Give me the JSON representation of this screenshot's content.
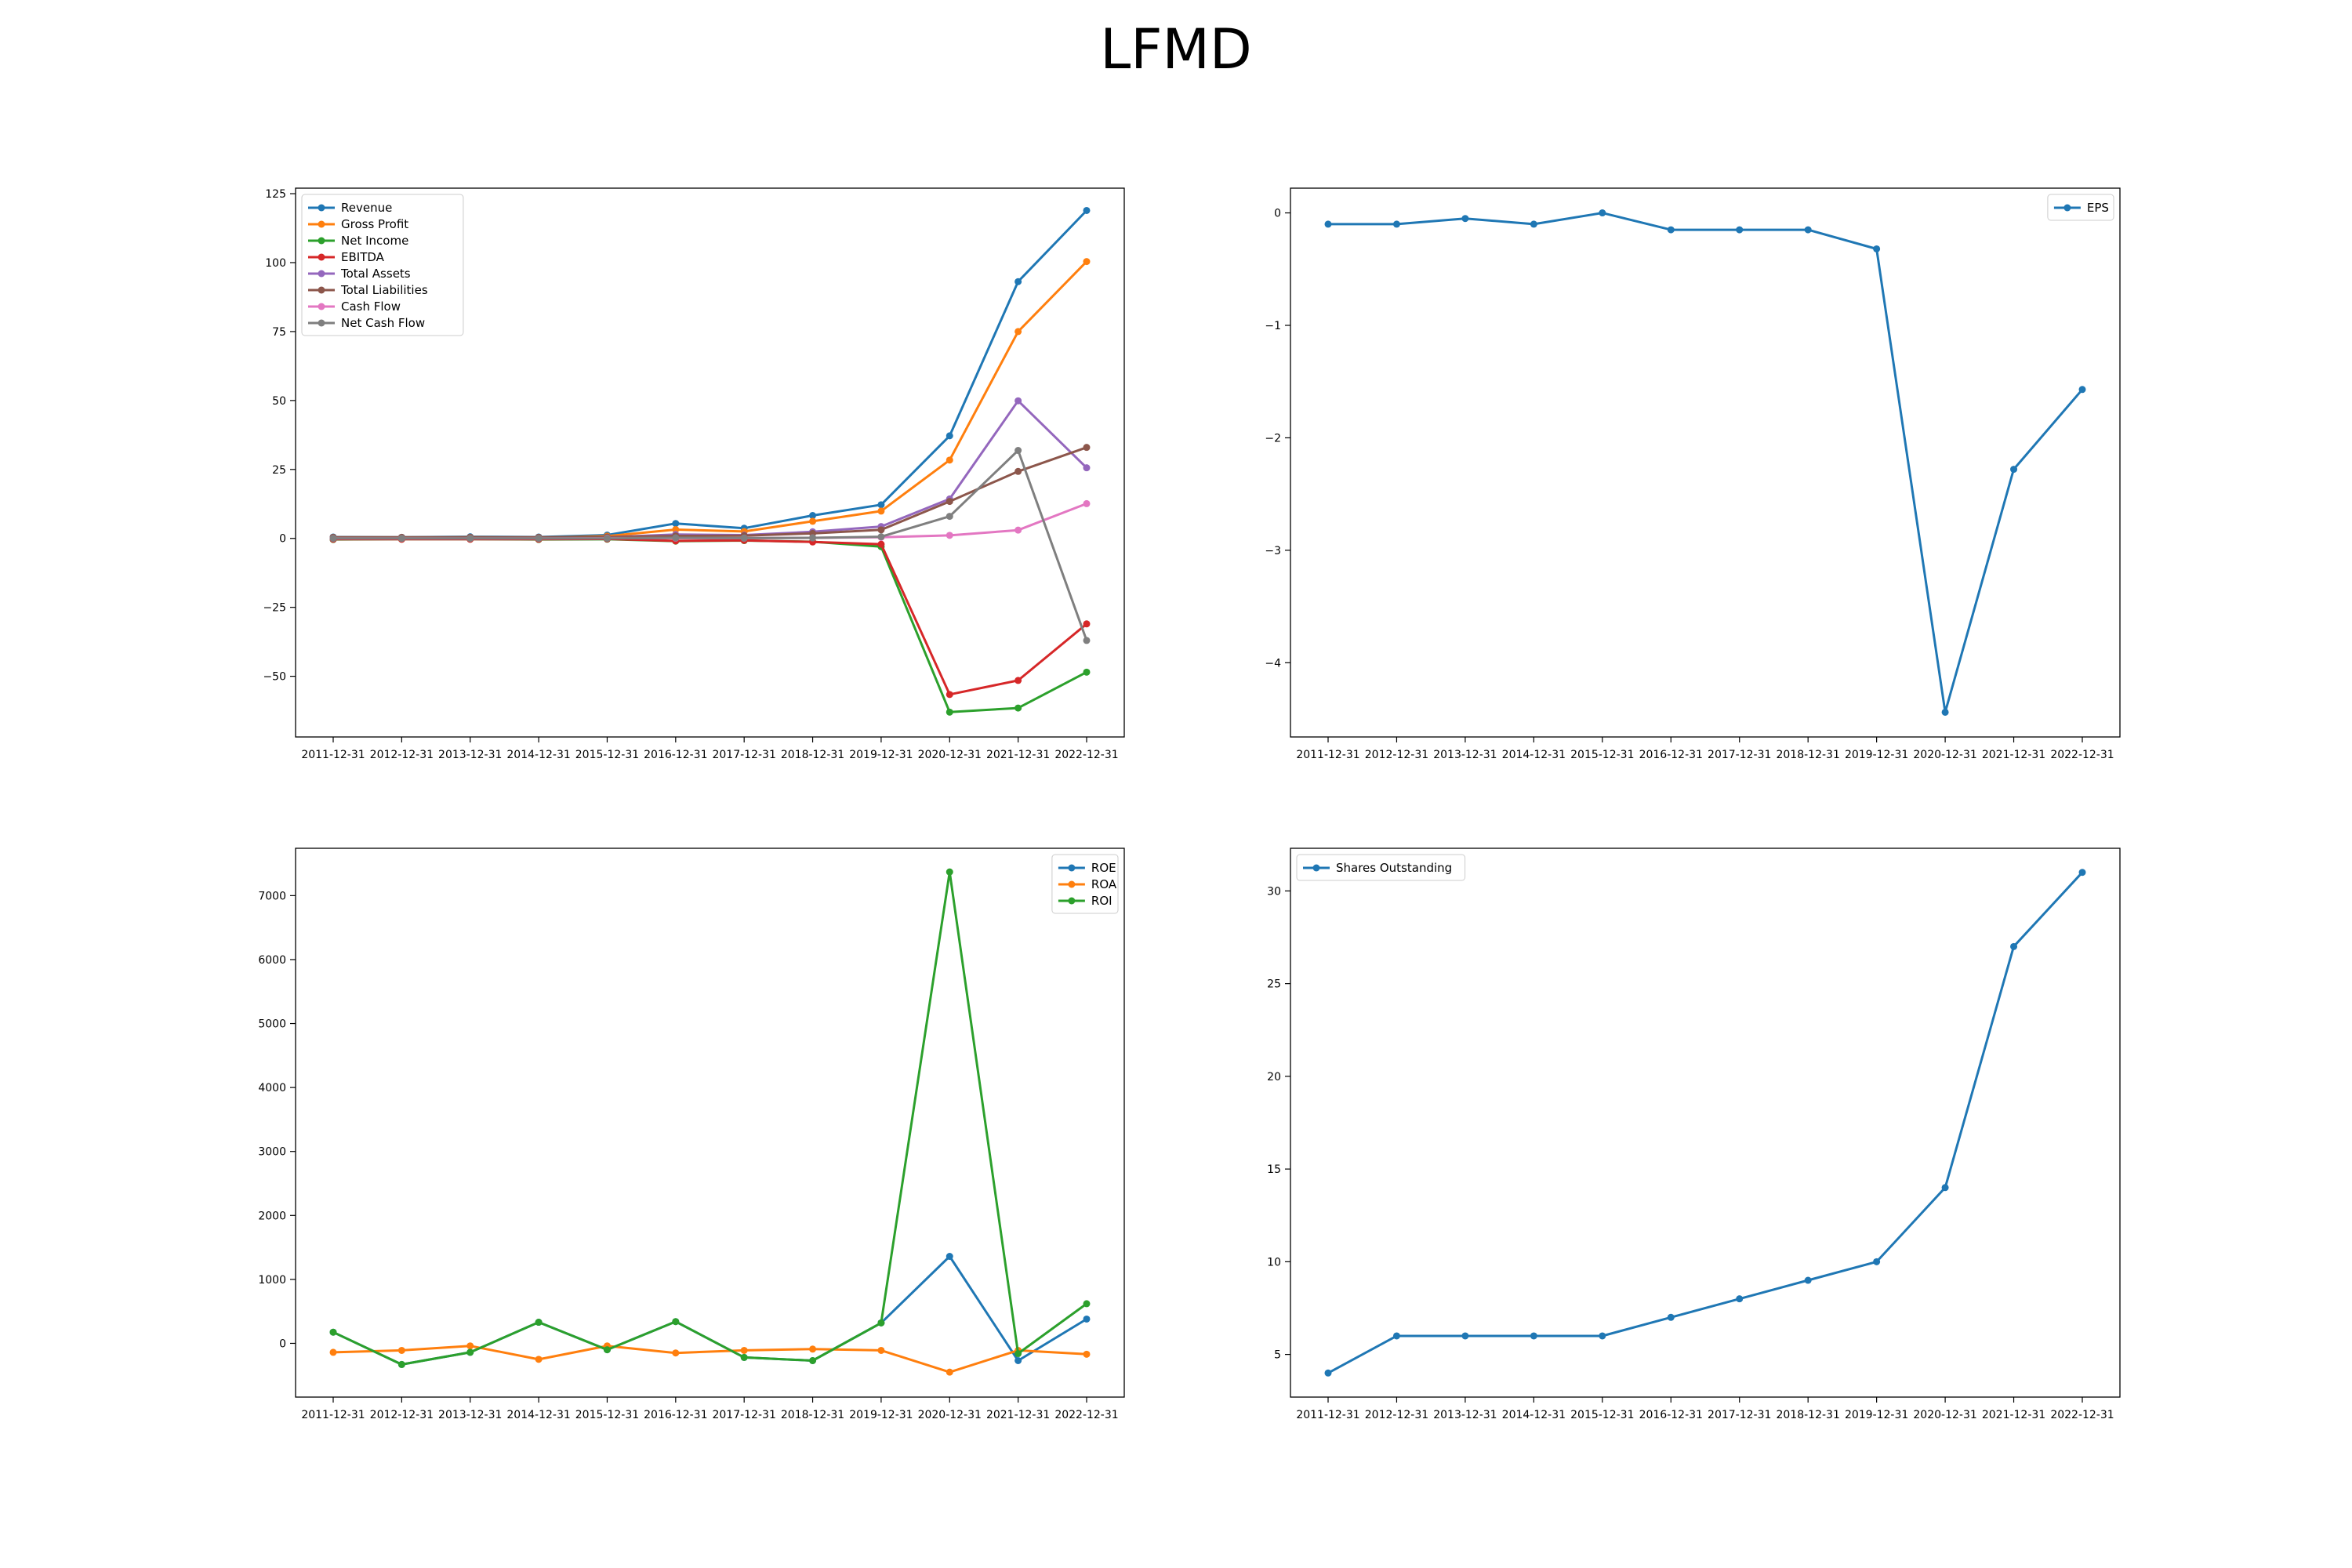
{
  "figure": {
    "title": "LFMD"
  },
  "chart_data": [
    {
      "id": "financials",
      "type": "line",
      "x": [
        "2011-12-31",
        "2012-12-31",
        "2013-12-31",
        "2014-12-31",
        "2015-12-31",
        "2016-12-31",
        "2017-12-31",
        "2018-12-31",
        "2019-12-31",
        "2020-12-31",
        "2021-12-31",
        "2022-12-31"
      ],
      "ylim": [
        -72,
        127
      ],
      "yticks": [
        -50,
        -25,
        0,
        25,
        50,
        75,
        100,
        125
      ],
      "legend": "upper left",
      "series": [
        {
          "name": "Revenue",
          "color": "#1f77b4",
          "values": [
            0.5,
            0.4,
            0.6,
            0.5,
            1.2,
            5.4,
            3.7,
            8.3,
            12.2,
            37.2,
            93.1,
            118.9
          ]
        },
        {
          "name": "Gross Profit",
          "color": "#ff7f0e",
          "values": [
            0.3,
            0.2,
            0.4,
            0.3,
            0.8,
            3.2,
            2.5,
            6.2,
            9.9,
            28.4,
            75.0,
            100.4
          ]
        },
        {
          "name": "Net Income",
          "color": "#2ca02c",
          "values": [
            -0.4,
            -0.3,
            -0.3,
            -0.4,
            -0.3,
            -1.0,
            -0.8,
            -1.2,
            -3.0,
            -63.0,
            -61.5,
            -48.5
          ]
        },
        {
          "name": "EBITDA",
          "color": "#d62728",
          "values": [
            -0.3,
            -0.3,
            -0.3,
            -0.3,
            -0.2,
            -0.9,
            -0.7,
            -1.3,
            -2.1,
            -56.6,
            -51.5,
            -31.0
          ]
        },
        {
          "name": "Total Assets",
          "color": "#9467bd",
          "values": [
            0.3,
            0.3,
            0.3,
            0.2,
            0.4,
            1.4,
            1.2,
            2.4,
            4.3,
            14.3,
            49.9,
            25.6
          ]
        },
        {
          "name": "Total Liabilities",
          "color": "#8c564b",
          "values": [
            0.4,
            0.4,
            0.4,
            0.4,
            0.5,
            0.9,
            1.0,
            1.8,
            3.1,
            13.4,
            24.3,
            33.0
          ]
        },
        {
          "name": "Cash Flow",
          "color": "#e377c2",
          "values": [
            0.0,
            0.0,
            0.0,
            0.0,
            0.1,
            0.1,
            0.1,
            0.2,
            0.4,
            1.1,
            3.0,
            12.6
          ]
        },
        {
          "name": "Net Cash Flow",
          "color": "#7f7f7f",
          "values": [
            0.0,
            0.0,
            0.0,
            0.0,
            0.0,
            0.2,
            0.1,
            0.2,
            0.6,
            8.0,
            31.9,
            -37.0
          ]
        }
      ]
    },
    {
      "id": "eps",
      "type": "line",
      "x": [
        "2011-12-31",
        "2012-12-31",
        "2013-12-31",
        "2014-12-31",
        "2015-12-31",
        "2016-12-31",
        "2017-12-31",
        "2018-12-31",
        "2019-12-31",
        "2020-12-31",
        "2021-12-31",
        "2022-12-31"
      ],
      "ylim": [
        -4.66,
        0.22
      ],
      "yticks": [
        -4,
        -3,
        -2,
        -1,
        0
      ],
      "ytick_labels": [
        "−4",
        "−3",
        "−2",
        "−1",
        "0"
      ],
      "legend": "upper right",
      "series": [
        {
          "name": "EPS",
          "color": "#1f77b4",
          "values": [
            -0.1,
            -0.1,
            -0.05,
            -0.1,
            0.0,
            -0.15,
            -0.15,
            -0.15,
            -0.32,
            -4.44,
            -2.28,
            -1.57
          ]
        }
      ]
    },
    {
      "id": "returns",
      "type": "line",
      "x": [
        "2011-12-31",
        "2012-12-31",
        "2013-12-31",
        "2014-12-31",
        "2015-12-31",
        "2016-12-31",
        "2017-12-31",
        "2018-12-31",
        "2019-12-31",
        "2020-12-31",
        "2021-12-31",
        "2022-12-31"
      ],
      "ylim": [
        -840,
        7740
      ],
      "yticks": [
        0,
        1000,
        2000,
        3000,
        4000,
        5000,
        6000,
        7000
      ],
      "legend": "upper right",
      "series": [
        {
          "name": "ROE",
          "color": "#1f77b4",
          "values": [
            175,
            -330,
            -140,
            330,
            -100,
            340,
            -220,
            -270,
            320,
            1360,
            -270,
            380
          ]
        },
        {
          "name": "ROA",
          "color": "#ff7f0e",
          "values": [
            -140,
            -110,
            -40,
            -250,
            -40,
            -150,
            -110,
            -90,
            -110,
            -450,
            -110,
            -170
          ]
        },
        {
          "name": "ROI",
          "color": "#2ca02c",
          "values": [
            175,
            -330,
            -140,
            330,
            -100,
            340,
            -220,
            -270,
            320,
            7370,
            -160,
            620
          ]
        }
      ]
    },
    {
      "id": "shares",
      "type": "line",
      "x": [
        "2011-12-31",
        "2012-12-31",
        "2013-12-31",
        "2014-12-31",
        "2015-12-31",
        "2016-12-31",
        "2017-12-31",
        "2018-12-31",
        "2019-12-31",
        "2020-12-31",
        "2021-12-31",
        "2022-12-31"
      ],
      "ylim": [
        2.7,
        32.3
      ],
      "yticks": [
        5,
        10,
        15,
        20,
        25,
        30
      ],
      "legend": "upper left",
      "series": [
        {
          "name": "Shares Outstanding",
          "color": "#1f77b4",
          "values": [
            4,
            6,
            6,
            6,
            6,
            7,
            8,
            9,
            10,
            14,
            27,
            31
          ]
        }
      ]
    }
  ]
}
